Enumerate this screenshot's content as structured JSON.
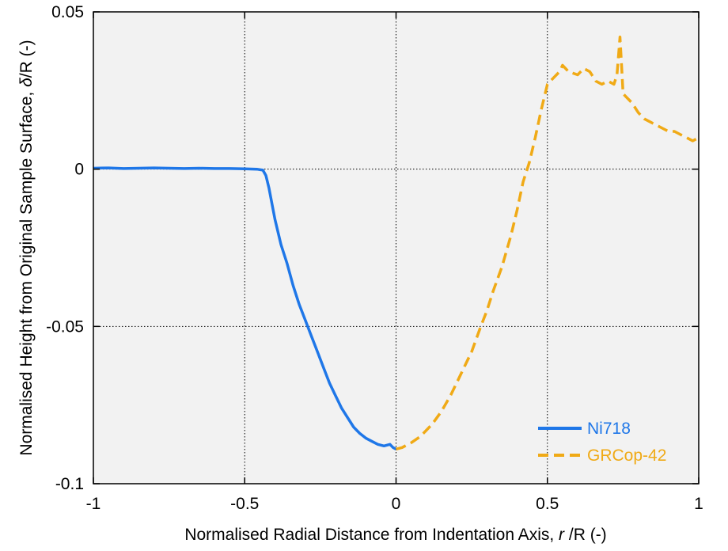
{
  "chart_data": {
    "type": "line",
    "title": "",
    "xlabel": {
      "prefix": "Normalised Radial Distance from Indentation Axis, ",
      "symbol": "r",
      "suffix": " /R (-)"
    },
    "ylabel": {
      "prefix": "Normalised Height from Original Sample Surface, ",
      "symbol": "δ",
      "suffix": "/R (-)"
    },
    "xlim": [
      -1,
      1
    ],
    "ylim": [
      -0.1,
      0.05
    ],
    "xticks": [
      -1,
      -0.5,
      0,
      0.5,
      1
    ],
    "xtick_labels": [
      "-1",
      "-0.5",
      "0",
      "0.5",
      "1"
    ],
    "yticks": [
      -0.1,
      -0.05,
      0,
      0.05
    ],
    "ytick_labels": [
      "-0.1",
      "-0.05",
      "0",
      "0.05"
    ],
    "grid": "dotted",
    "legend_position": "bottom-right",
    "background": "#f2f2f2",
    "series": [
      {
        "name": "Ni718",
        "color": "#1f77e8",
        "style": "solid",
        "x": [
          -1.0,
          -0.95,
          -0.9,
          -0.85,
          -0.8,
          -0.75,
          -0.7,
          -0.65,
          -0.6,
          -0.55,
          -0.5,
          -0.46,
          -0.44,
          -0.43,
          -0.42,
          -0.41,
          -0.4,
          -0.38,
          -0.36,
          -0.34,
          -0.32,
          -0.3,
          -0.28,
          -0.26,
          -0.24,
          -0.22,
          -0.2,
          -0.18,
          -0.16,
          -0.14,
          -0.12,
          -0.1,
          -0.08,
          -0.06,
          -0.04,
          -0.02,
          -0.01,
          0.0
        ],
        "y": [
          0.0003,
          0.0004,
          0.0002,
          0.0003,
          0.0004,
          0.0003,
          0.0002,
          0.0003,
          0.0002,
          0.0002,
          0.0001,
          0.0,
          -0.0003,
          -0.002,
          -0.006,
          -0.011,
          -0.016,
          -0.024,
          -0.03,
          -0.037,
          -0.043,
          -0.048,
          -0.053,
          -0.058,
          -0.063,
          -0.068,
          -0.072,
          -0.076,
          -0.079,
          -0.082,
          -0.084,
          -0.0855,
          -0.0865,
          -0.0875,
          -0.088,
          -0.0875,
          -0.0885,
          -0.089
        ]
      },
      {
        "name": "GRCop-42",
        "color": "#f0aa16",
        "style": "dashed",
        "x": [
          0.0,
          0.02,
          0.05,
          0.08,
          0.1,
          0.12,
          0.15,
          0.18,
          0.2,
          0.22,
          0.25,
          0.28,
          0.3,
          0.32,
          0.35,
          0.38,
          0.4,
          0.42,
          0.44,
          0.46,
          0.48,
          0.5,
          0.52,
          0.54,
          0.55,
          0.57,
          0.6,
          0.62,
          0.64,
          0.66,
          0.68,
          0.7,
          0.72,
          0.73,
          0.74,
          0.745,
          0.75,
          0.76,
          0.78,
          0.8,
          0.82,
          0.84,
          0.86,
          0.88,
          0.9,
          0.92,
          0.94,
          0.96,
          0.98,
          1.0
        ],
        "y": [
          -0.089,
          -0.0885,
          -0.087,
          -0.085,
          -0.083,
          -0.081,
          -0.077,
          -0.072,
          -0.068,
          -0.064,
          -0.058,
          -0.05,
          -0.045,
          -0.039,
          -0.031,
          -0.021,
          -0.013,
          -0.004,
          0.002,
          0.01,
          0.019,
          0.027,
          0.029,
          0.031,
          0.033,
          0.031,
          0.03,
          0.032,
          0.031,
          0.028,
          0.027,
          0.028,
          0.027,
          0.03,
          0.042,
          0.033,
          0.024,
          0.023,
          0.021,
          0.018,
          0.016,
          0.015,
          0.014,
          0.013,
          0.012,
          0.012,
          0.011,
          0.01,
          0.009,
          0.01
        ]
      }
    ]
  }
}
